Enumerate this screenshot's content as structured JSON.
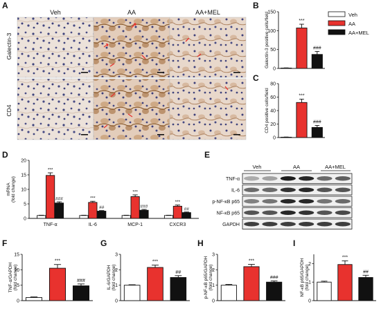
{
  "figure": {
    "panels": {
      "A": "A",
      "B": "B",
      "C": "C",
      "D": "D",
      "E": "E",
      "F": "F",
      "G": "G",
      "H": "H",
      "I": "I"
    },
    "histology": {
      "columns": [
        "Veh",
        "AA",
        "AA+MEL"
      ],
      "rows": [
        "Galectin-3",
        "CD4"
      ]
    },
    "legend": [
      "Veh",
      "AA",
      "AA+MEL"
    ],
    "colors": {
      "veh": "#ffffff",
      "aa": "#e8322e",
      "mel": "#111111",
      "tissue": "#e9dcd2",
      "nuclei": "#3d3f7a",
      "stain": "#8a5a2c",
      "arrow": "#e8322e"
    },
    "blot": {
      "groups": [
        "Veh",
        "AA",
        "AA+MEL"
      ],
      "rows": [
        "TNF-α",
        "IL-6",
        "p-NF-κB p65",
        "NF-κB p65",
        "GAPDH"
      ]
    }
  },
  "chart_data": [
    {
      "panel": "B",
      "type": "bar",
      "categories": [
        "Veh",
        "AA",
        "AA+MEL"
      ],
      "values": [
        1,
        107,
        37
      ],
      "errors": [
        0.5,
        10,
        8
      ],
      "ylabel": "Galectin-3 positive cells/field",
      "ylim": [
        0,
        150
      ],
      "yticks": [
        "0",
        "50",
        "100",
        "150"
      ],
      "sig": [
        "",
        "***",
        "###"
      ]
    },
    {
      "panel": "C",
      "type": "bar",
      "categories": [
        "Veh",
        "AA",
        "AA+MEL"
      ],
      "values": [
        0.5,
        52,
        15
      ],
      "errors": [
        0.3,
        5,
        3
      ],
      "ylabel": "CD4 positive cells/field",
      "ylim": [
        0,
        80
      ],
      "yticks": [
        "0",
        "20",
        "40",
        "60",
        "80"
      ],
      "sig": [
        "",
        "***",
        "###"
      ]
    },
    {
      "panel": "D",
      "type": "bar",
      "ylabel": "mRNA (fold change)",
      "ylim": [
        0,
        20
      ],
      "yticks": [
        "0",
        "5",
        "10",
        "15",
        "20"
      ],
      "categories": [
        "TNF-α",
        "IL-6",
        "MCP-1",
        "CXCR3"
      ],
      "series": [
        {
          "values": [
            1,
            1,
            1,
            1
          ],
          "errors": [
            0.1,
            0.1,
            0.1,
            0.1
          ]
        },
        {
          "values": [
            14.8,
            5.5,
            7.5,
            4.2
          ],
          "errors": [
            0.9,
            0.4,
            0.6,
            0.4
          ]
        },
        {
          "values": [
            5.3,
            2.5,
            2.8,
            2.0
          ],
          "errors": [
            0.4,
            0.2,
            0.3,
            0.2
          ]
        }
      ],
      "sig": [
        [
          "***",
          "###"
        ],
        [
          "***",
          "##"
        ],
        [
          "***",
          "###"
        ],
        [
          "***",
          "##"
        ]
      ]
    },
    {
      "panel": "F",
      "type": "bar",
      "categories": [
        "Veh",
        "AA",
        "AA+MEL"
      ],
      "values": [
        1,
        10.5,
        4.8
      ],
      "errors": [
        0.2,
        1.2,
        0.6
      ],
      "ylabel": "TNF-α/GAPDH (fold change)",
      "ylim": [
        0,
        15
      ],
      "yticks": [
        "0",
        "5",
        "10",
        "15"
      ],
      "sig": [
        "",
        "***",
        "###"
      ]
    },
    {
      "panel": "G",
      "type": "bar",
      "categories": [
        "Veh",
        "AA",
        "AA+MEL"
      ],
      "values": [
        1,
        2.15,
        1.5
      ],
      "errors": [
        0.03,
        0.15,
        0.12
      ],
      "ylabel": "IL-6/GAPDH (fold change)",
      "ylim": [
        0,
        3
      ],
      "yticks": [
        "0",
        "1",
        "2",
        "3"
      ],
      "sig": [
        "",
        "***",
        "##"
      ]
    },
    {
      "panel": "H",
      "type": "bar",
      "categories": [
        "Veh",
        "AA",
        "AA+MEL"
      ],
      "values": [
        1,
        2.2,
        1.2
      ],
      "errors": [
        0.05,
        0.15,
        0.08
      ],
      "ylabel": "p-NF-κB p65/GAPDH (fold change)",
      "ylim": [
        0,
        3
      ],
      "yticks": [
        "0",
        "1",
        "2",
        "3"
      ],
      "sig": [
        "",
        "***",
        "###"
      ]
    },
    {
      "panel": "I",
      "type": "bar",
      "categories": [
        "Veh",
        "AA",
        "AA+MEL"
      ],
      "values": [
        1,
        1.95,
        1.25
      ],
      "errors": [
        0.05,
        0.2,
        0.12
      ],
      "ylabel": "NF-κB p65/GAPDH (fold change)",
      "ylim": [
        0,
        2.5
      ],
      "yticks": [
        "0",
        "1",
        "2"
      ],
      "sig": [
        "",
        "***",
        "##"
      ]
    }
  ]
}
